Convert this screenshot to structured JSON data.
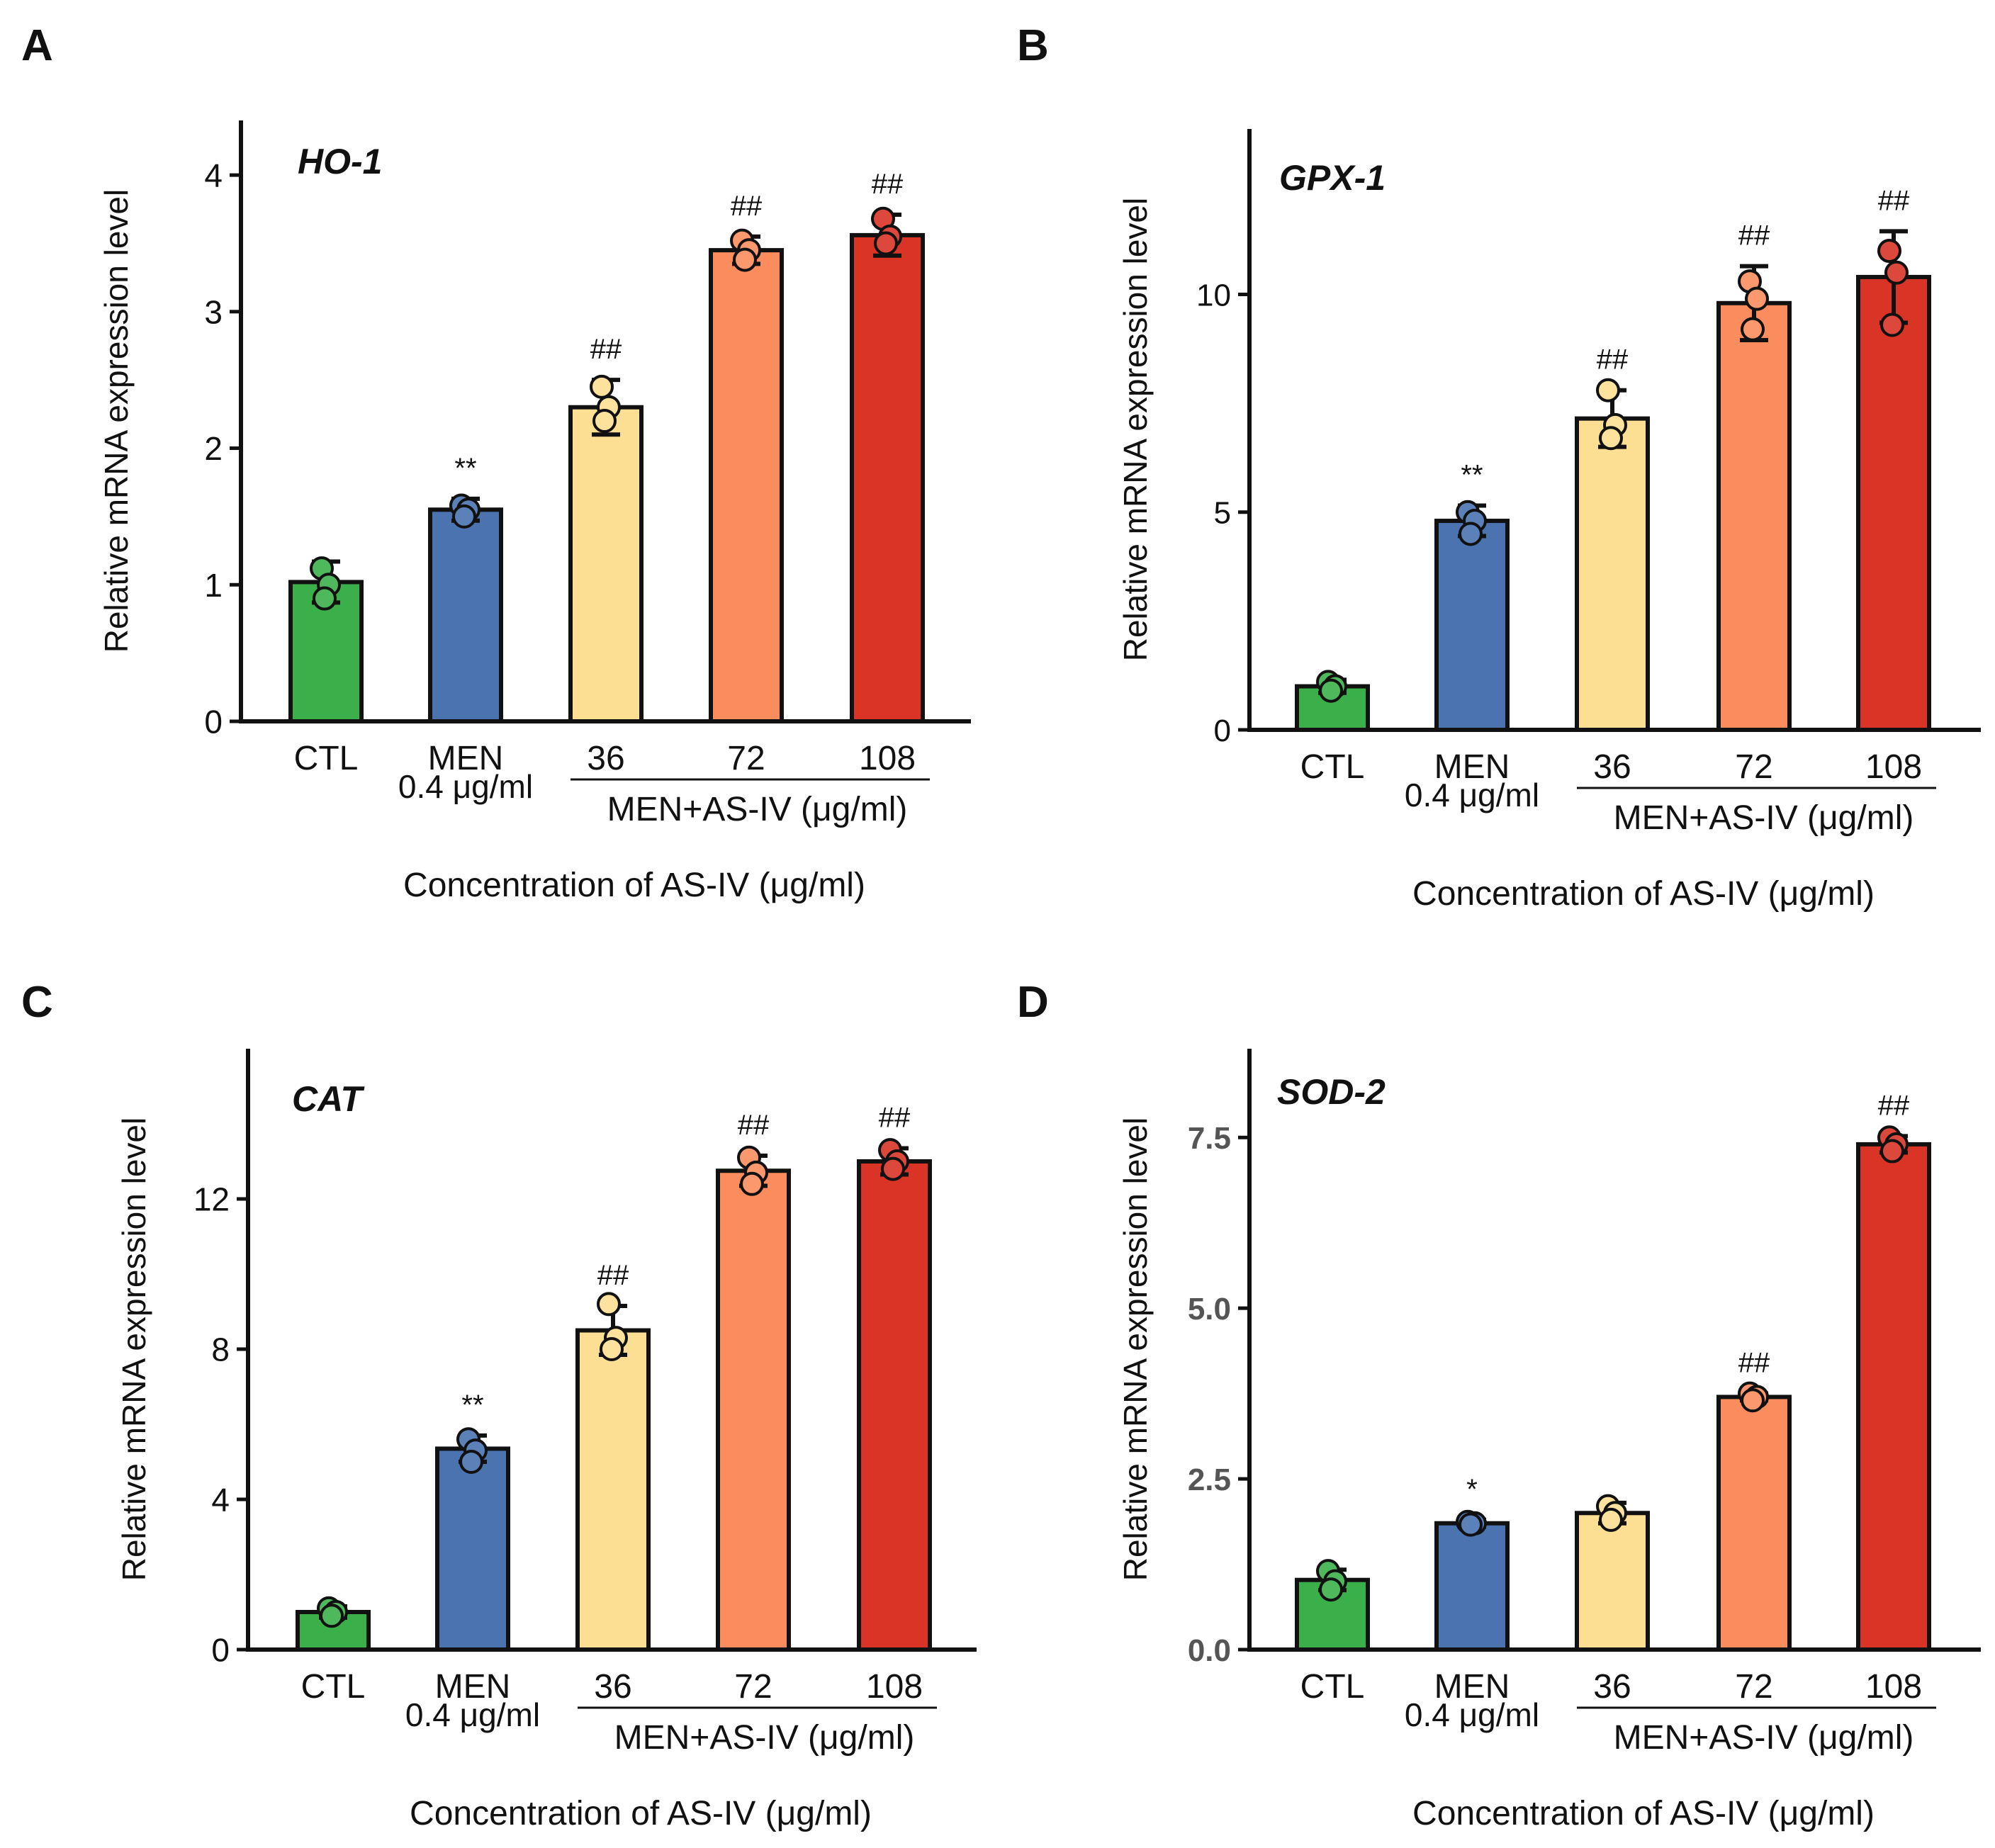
{
  "figure": {
    "colors": {
      "ctl": "#3bb04a",
      "men": "#4a73b0",
      "as36": "#fddf93",
      "as72": "#fb8c5e",
      "as108": "#d93426",
      "outline": "#111111",
      "text": "#111111"
    }
  },
  "chart_data": [
    {
      "panel_label": "A",
      "type": "bar",
      "title": "HO-1",
      "ylabel": "Relative mRNA expression level",
      "xlabel": "Concentration of  AS-IV (μg/ml)",
      "group_label": "MEN+AS-IV (μg/ml)",
      "categories": [
        {
          "line1": "CTL",
          "line2": ""
        },
        {
          "line1": "MEN",
          "line2": "0.4 μg/ml"
        },
        {
          "line1": "36",
          "line2": ""
        },
        {
          "line1": "72",
          "line2": ""
        },
        {
          "line1": "108",
          "line2": ""
        }
      ],
      "values": [
        1.02,
        1.55,
        2.3,
        3.45,
        3.56
      ],
      "errors": [
        0.15,
        0.08,
        0.2,
        0.1,
        0.15
      ],
      "points": [
        [
          1.12,
          1.0,
          0.9
        ],
        [
          1.58,
          1.55,
          1.5
        ],
        [
          2.45,
          2.3,
          2.2
        ],
        [
          3.52,
          3.45,
          3.38
        ],
        [
          3.68,
          3.55,
          3.5
        ]
      ],
      "significance": [
        "",
        "**",
        "##",
        "##",
        "##"
      ],
      "ylim": [
        0,
        4.4
      ],
      "yticks": [
        "0",
        "1",
        "2",
        "3",
        "4"
      ],
      "ytick_values": [
        0,
        1,
        2,
        3,
        4
      ]
    },
    {
      "panel_label": "B",
      "type": "bar",
      "title": "GPX-1",
      "ylabel": "Relative mRNA expression level",
      "xlabel": "Concentration of  AS-IV (μg/ml)",
      "group_label": "MEN+AS-IV (μg/ml)",
      "categories": [
        {
          "line1": "CTL",
          "line2": ""
        },
        {
          "line1": "MEN",
          "line2": "0.4 μg/ml"
        },
        {
          "line1": "36",
          "line2": ""
        },
        {
          "line1": "72",
          "line2": ""
        },
        {
          "line1": "108",
          "line2": ""
        }
      ],
      "values": [
        1.0,
        4.8,
        7.15,
        9.8,
        10.4
      ],
      "errors": [
        0.15,
        0.35,
        0.65,
        0.85,
        1.05
      ],
      "points": [
        [
          1.1,
          1.0,
          0.9
        ],
        [
          5.0,
          4.8,
          4.5
        ],
        [
          7.8,
          7.0,
          6.7
        ],
        [
          10.3,
          9.9,
          9.2
        ],
        [
          11.0,
          10.5,
          9.3
        ]
      ],
      "significance": [
        "",
        "**",
        "##",
        "##",
        "##"
      ],
      "ylim": [
        0,
        13.8
      ],
      "yticks": [
        "0",
        "5",
        "10"
      ],
      "ytick_values": [
        0,
        5,
        10
      ]
    },
    {
      "panel_label": "C",
      "type": "bar",
      "title": "CAT",
      "ylabel": "Relative mRNA expression level",
      "xlabel": "Concentration of  AS-IV (μg/ml)",
      "group_label": "MEN+AS-IV (μg/ml)",
      "categories": [
        {
          "line1": "CTL",
          "line2": ""
        },
        {
          "line1": "MEN",
          "line2": "0.4 μg/ml"
        },
        {
          "line1": "36",
          "line2": ""
        },
        {
          "line1": "72",
          "line2": ""
        },
        {
          "line1": "108",
          "line2": ""
        }
      ],
      "values": [
        1.0,
        5.35,
        8.5,
        12.75,
        13.0
      ],
      "errors": [
        0.15,
        0.35,
        0.65,
        0.4,
        0.35
      ],
      "points": [
        [
          1.1,
          1.0,
          0.9
        ],
        [
          5.6,
          5.3,
          5.0
        ],
        [
          9.2,
          8.3,
          8.0
        ],
        [
          13.1,
          12.7,
          12.4
        ],
        [
          13.3,
          13.0,
          12.8
        ]
      ],
      "significance": [
        "",
        "**",
        "##",
        "##",
        "##"
      ],
      "ylim": [
        0,
        16.0
      ],
      "yticks": [
        "0",
        "4",
        "8",
        "12"
      ],
      "ytick_values": [
        0,
        4,
        8,
        12
      ]
    },
    {
      "panel_label": "D",
      "type": "bar",
      "title": "SOD-2",
      "ylabel": "Relative mRNA expression level",
      "xlabel": "Concentration of  AS-IV (μg/ml)",
      "group_label": "MEN+AS-IV (μg/ml)",
      "categories": [
        {
          "line1": "CTL",
          "line2": ""
        },
        {
          "line1": "MEN",
          "line2": "0.4 μg/ml"
        },
        {
          "line1": "36",
          "line2": ""
        },
        {
          "line1": "72",
          "line2": ""
        },
        {
          "line1": "108",
          "line2": ""
        }
      ],
      "values": [
        1.02,
        1.85,
        2.0,
        3.7,
        7.4
      ],
      "errors": [
        0.15,
        0.05,
        0.15,
        0.05,
        0.12
      ],
      "points": [
        [
          1.15,
          1.0,
          0.88
        ],
        [
          1.87,
          1.85,
          1.83
        ],
        [
          2.1,
          2.0,
          1.9
        ],
        [
          3.75,
          3.7,
          3.65
        ],
        [
          7.5,
          7.4,
          7.3
        ]
      ],
      "significance": [
        "",
        "*",
        "",
        "##",
        "##"
      ],
      "ylim": [
        0,
        8.8
      ],
      "yticks": [
        "0.0",
        "2.5",
        "5.0",
        "7.5"
      ],
      "ytick_values": [
        0,
        2.5,
        5.0,
        7.5
      ]
    }
  ]
}
